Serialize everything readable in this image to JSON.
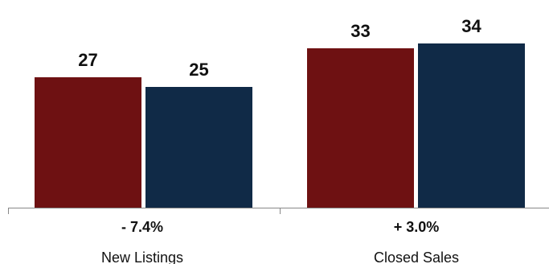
{
  "chart_data": {
    "type": "bar",
    "categories": [
      "New Listings",
      "Closed Sales"
    ],
    "changes": [
      "- 7.4%",
      "+ 3.0%"
    ],
    "series": [
      {
        "values": [
          27,
          25
        ],
        "color": "#6e1112"
      },
      {
        "values": [
          33,
          34
        ],
        "color": "#102a47"
      }
    ],
    "group_values": [
      [
        27,
        25
      ],
      [
        33,
        34
      ]
    ],
    "ylim": [
      0,
      40
    ],
    "grid": false,
    "legend": "none",
    "title": "",
    "xlabel": "",
    "ylabel": ""
  }
}
